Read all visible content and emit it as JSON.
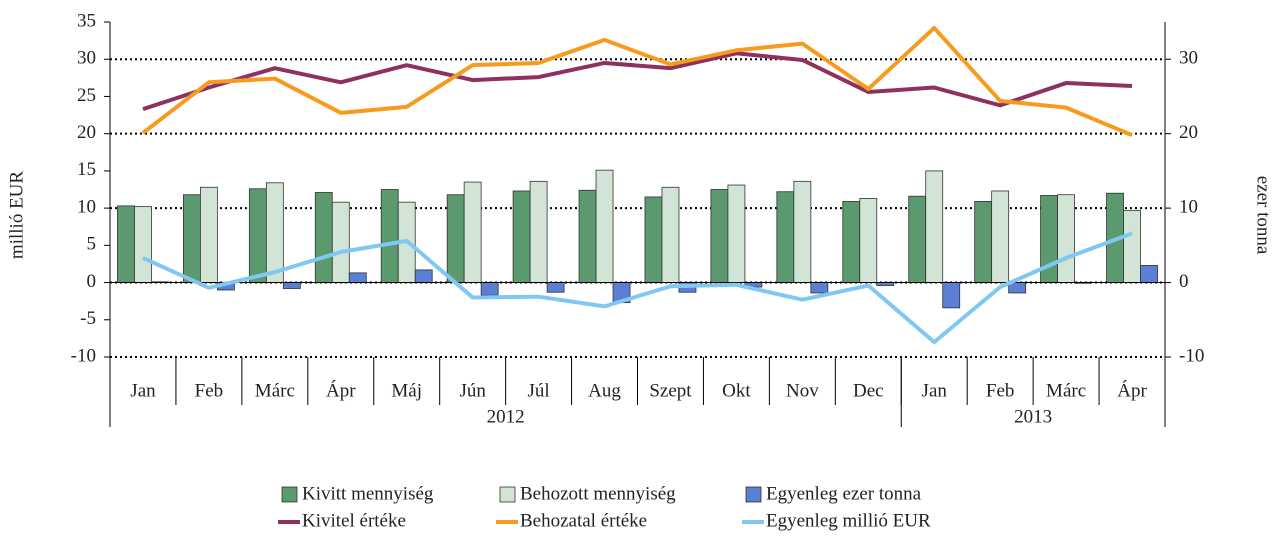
{
  "chart_data": {
    "type": "combo",
    "ylabel": "millió EUR",
    "y2label": "ezer tonna",
    "categories": [
      "Jan",
      "Feb",
      "Márc",
      "Ápr",
      "Máj",
      "Jún",
      "Júl",
      "Aug",
      "Szept",
      "Okt",
      "Nov",
      "Dec",
      "Jan",
      "Feb",
      "Márc",
      "Ápr"
    ],
    "groups": [
      {
        "label": "2012",
        "span": 12
      },
      {
        "label": "2013",
        "span": 4
      }
    ],
    "ylim": [
      -10,
      35
    ],
    "yticks": [
      -10,
      -5,
      0,
      5,
      10,
      15,
      20,
      25,
      30,
      35
    ],
    "y2lim": [
      -10,
      35
    ],
    "y2ticks": [
      -10,
      0,
      10,
      20,
      30
    ],
    "grid": true,
    "legend": "bottom",
    "series": [
      {
        "name": "Kivitt mennyiség",
        "type": "bar",
        "axis": "y2",
        "color": "#5a9a6e",
        "values": [
          10.3,
          11.8,
          12.6,
          12.1,
          12.5,
          11.8,
          12.3,
          12.4,
          11.5,
          12.5,
          12.2,
          10.9,
          11.6,
          10.9,
          11.7,
          12.0
        ]
      },
      {
        "name": "Behozott mennyiség",
        "type": "bar",
        "axis": "y2",
        "color": "#d2e4d6",
        "values": [
          10.2,
          12.8,
          13.4,
          10.8,
          10.8,
          13.5,
          13.6,
          15.1,
          12.8,
          13.1,
          13.6,
          11.3,
          15.0,
          12.3,
          11.8,
          9.7
        ]
      },
      {
        "name": "Egyenleg ezer tonna",
        "type": "bar",
        "axis": "y2",
        "color": "#5b7fd4",
        "values": [
          0.1,
          -1.0,
          -0.8,
          1.3,
          1.7,
          -1.7,
          -1.3,
          -2.7,
          -1.3,
          -0.6,
          -1.4,
          -0.4,
          -3.4,
          -1.4,
          -0.1,
          2.3
        ]
      },
      {
        "name": "Kivitel értéke",
        "type": "line",
        "axis": "y",
        "color": "#8e3060",
        "values": [
          23.3,
          26.2,
          28.8,
          26.9,
          29.2,
          27.2,
          27.6,
          29.5,
          28.8,
          30.8,
          29.9,
          25.6,
          26.2,
          23.8,
          26.8,
          26.4
        ]
      },
      {
        "name": "Behozatal értéke",
        "type": "line",
        "axis": "y",
        "color": "#f79b1f",
        "values": [
          20.1,
          26.9,
          27.4,
          22.8,
          23.6,
          29.2,
          29.5,
          32.6,
          29.3,
          31.2,
          32.1,
          26.0,
          34.2,
          24.4,
          23.5,
          19.8
        ]
      },
      {
        "name": "Egyenleg millió EUR",
        "type": "line",
        "axis": "y",
        "color": "#80c8f2",
        "values": [
          3.3,
          -0.7,
          1.4,
          4.1,
          5.6,
          -2.0,
          -1.9,
          -3.2,
          -0.5,
          -0.3,
          -2.3,
          -0.4,
          -8.0,
          -0.6,
          3.3,
          6.6
        ]
      }
    ]
  }
}
